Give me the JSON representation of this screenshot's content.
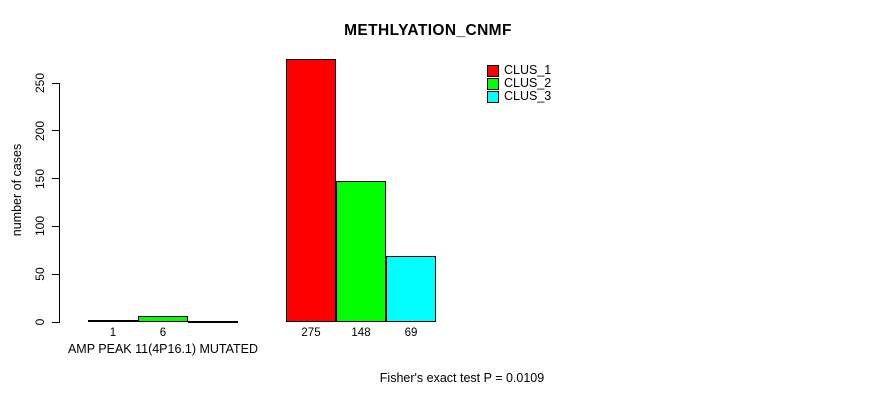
{
  "chart_data": {
    "type": "bar",
    "title": "METHLYATION_CNMF",
    "ylabel": "number of cases",
    "ylim": [
      0,
      275
    ],
    "yticks": [
      0,
      50,
      100,
      150,
      200,
      250
    ],
    "groups": [
      "AMP PEAK 11(4P16.1) MUTATED",
      ""
    ],
    "series": [
      {
        "name": "CLUS_1",
        "color": "#ff0000",
        "values": [
          1,
          275
        ]
      },
      {
        "name": "CLUS_2",
        "color": "#00ff00",
        "values": [
          6,
          148
        ]
      },
      {
        "name": "CLUS_3",
        "color": "#00ffff",
        "values": [
          0,
          69
        ]
      }
    ],
    "bar_value_labels_shown": [
      "1",
      "6",
      "275",
      "148",
      "69"
    ],
    "legend": {
      "position": "top-right",
      "entries": [
        "CLUS_1",
        "CLUS_2",
        "CLUS_3"
      ]
    },
    "annotation": "Fisher's exact test P = 0.0109",
    "grid": false,
    "axis_color": "#000000",
    "background": "#ffffff"
  }
}
